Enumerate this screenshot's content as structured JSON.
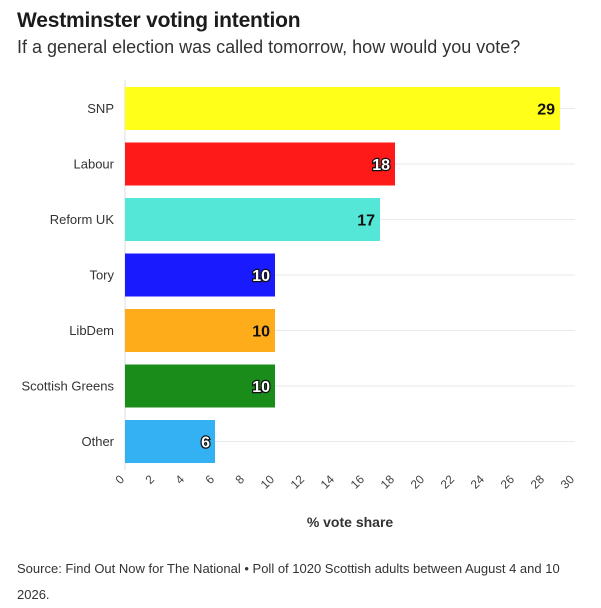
{
  "title": "Westminster voting intention",
  "subtitle": "If a general election was called tomorrow, how would you vote?",
  "source": "Source: Find Out Now for The National • Poll of 1020 Scottish adults between August 4 and 10 2026.",
  "chart_data": {
    "type": "bar",
    "orientation": "horizontal",
    "categories": [
      "SNP",
      "Labour",
      "Reform UK",
      "Tory",
      "LibDem",
      "Scottish Greens",
      "Other"
    ],
    "values": [
      29,
      18,
      17,
      10,
      10,
      10,
      6
    ],
    "colors": [
      "#ffff1a",
      "#ff1a1a",
      "#54e6d6",
      "#1a1aff",
      "#ffac1a",
      "#1a8c1a",
      "#33b1f2"
    ],
    "label_colors": [
      "#111111",
      "#ffffff",
      "#111111",
      "#ffffff",
      "#111111",
      "#ffffff",
      "#ffffff"
    ],
    "xlabel": "% vote share",
    "xlim": [
      0,
      30
    ],
    "xticks": [
      0,
      2,
      4,
      6,
      8,
      10,
      12,
      14,
      16,
      18,
      20,
      22,
      24,
      26,
      28,
      30
    ],
    "grid": true
  }
}
